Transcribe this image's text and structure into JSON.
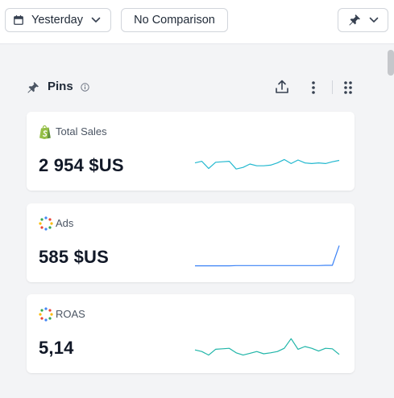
{
  "toolbar": {
    "date_range_label": "Yesterday",
    "comparison_label": "No Comparison"
  },
  "pins": {
    "title": "Pins",
    "cards": [
      {
        "label": "Total Sales",
        "icon": "shopify-icon",
        "value": "2 954 $US",
        "spark_color": "#22b8cf",
        "sparkline": [
          0.55,
          0.62,
          0.3,
          0.58,
          0.6,
          0.62,
          0.28,
          0.35,
          0.5,
          0.42,
          0.42,
          0.45,
          0.55,
          0.7,
          0.52,
          0.68,
          0.55,
          0.52,
          0.55,
          0.52,
          0.6,
          0.66
        ]
      },
      {
        "label": "Ads",
        "icon": "ads-icon",
        "value": "585 $US",
        "spark_color": "#3b82f6",
        "sparkline": [
          0.05,
          0.05,
          0.05,
          0.05,
          0.05,
          0.05,
          0.06,
          0.06,
          0.06,
          0.06,
          0.06,
          0.06,
          0.06,
          0.06,
          0.06,
          0.06,
          0.06,
          0.06,
          0.06,
          0.07,
          0.07,
          0.95
        ]
      },
      {
        "label": "ROAS",
        "icon": "ads-icon",
        "value": "5,14",
        "spark_color": "#1fb5a8",
        "sparkline": [
          0.35,
          0.28,
          0.12,
          0.38,
          0.4,
          0.42,
          0.22,
          0.12,
          0.2,
          0.28,
          0.18,
          0.22,
          0.28,
          0.42,
          0.85,
          0.38,
          0.5,
          0.42,
          0.3,
          0.42,
          0.4,
          0.15
        ]
      }
    ]
  }
}
